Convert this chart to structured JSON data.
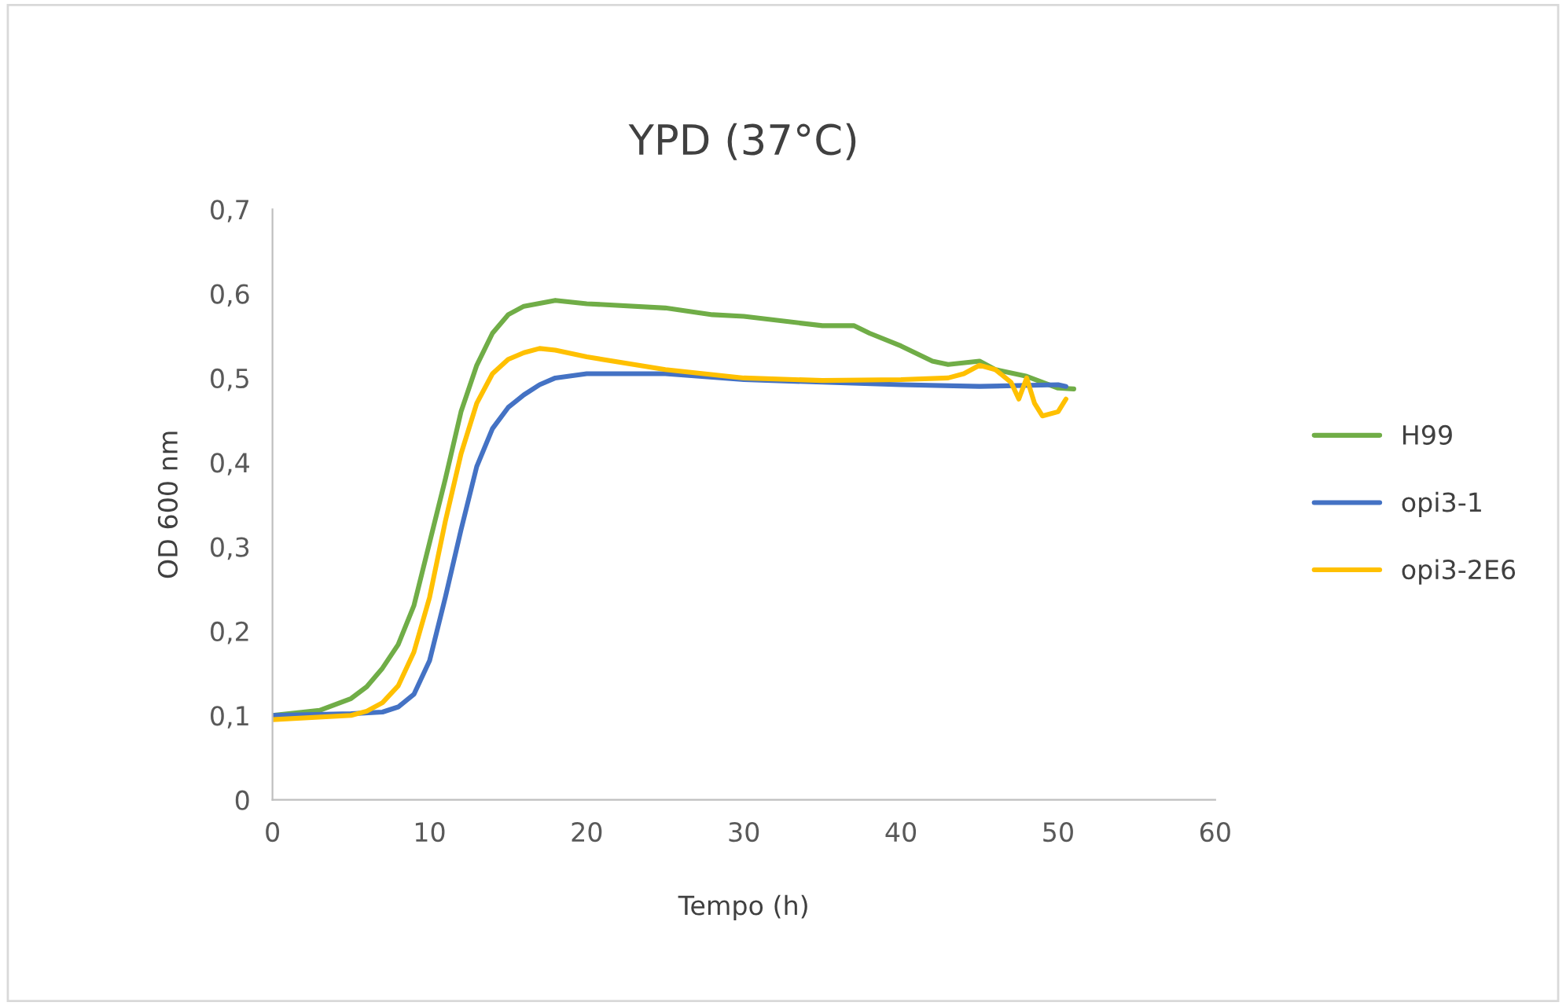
{
  "chart_data": {
    "type": "line",
    "title": "YPD (37°C)",
    "xlabel": "Tempo (h)",
    "ylabel": "OD 600 nm",
    "xlim": [
      0,
      60
    ],
    "xticks": [
      0,
      10,
      20,
      30,
      40,
      50,
      60
    ],
    "ylim": [
      0,
      0.7
    ],
    "yticks": [
      0,
      {
        "value": 0.1,
        "label": "0,1"
      },
      {
        "value": 0.2,
        "label": "0,2"
      },
      {
        "value": 0.3,
        "label": "0,3"
      },
      {
        "value": 0.4,
        "label": "0,4"
      },
      {
        "value": 0.5,
        "label": "0,5"
      },
      {
        "value": 0.6,
        "label": "0,6"
      },
      {
        "value": 0.7,
        "label": "0,7"
      }
    ],
    "grid": false,
    "legend": "right",
    "marker": "none",
    "line_style": "solid",
    "series": [
      {
        "name": "H99",
        "color": "#70ad47",
        "x": [
          0,
          3,
          5,
          6,
          7,
          8,
          9,
          10,
          11,
          12,
          13,
          14,
          15,
          16,
          18,
          20,
          25,
          28,
          30,
          35,
          37,
          38,
          40,
          42,
          43,
          45,
          46,
          48,
          50,
          51
        ],
        "values": [
          0.1,
          0.106,
          0.12,
          0.134,
          0.156,
          0.184,
          0.23,
          0.305,
          0.38,
          0.46,
          0.515,
          0.553,
          0.575,
          0.585,
          0.592,
          0.588,
          0.583,
          0.575,
          0.573,
          0.562,
          0.562,
          0.553,
          0.538,
          0.52,
          0.516,
          0.52,
          0.51,
          0.502,
          0.488,
          0.487
        ]
      },
      {
        "name": "opi3-1",
        "color": "#4472c4",
        "x": [
          0,
          5,
          7,
          8,
          9,
          10,
          11,
          12,
          13,
          14,
          15,
          16,
          17,
          18,
          20,
          25,
          30,
          35,
          40,
          45,
          50,
          50.5
        ],
        "values": [
          0.1,
          0.102,
          0.104,
          0.11,
          0.125,
          0.165,
          0.24,
          0.32,
          0.395,
          0.44,
          0.465,
          0.48,
          0.492,
          0.5,
          0.505,
          0.505,
          0.498,
          0.495,
          0.492,
          0.49,
          0.492,
          0.49
        ]
      },
      {
        "name": "opi3-2E6",
        "color": "#ffc000",
        "x": [
          0,
          5,
          6,
          7,
          8,
          9,
          10,
          11,
          12,
          13,
          14,
          15,
          16,
          17,
          18,
          20,
          25,
          30,
          35,
          40,
          43,
          44,
          45,
          46,
          47,
          47.5,
          48,
          48.5,
          49,
          50,
          50.5
        ],
        "values": [
          0.095,
          0.1,
          0.105,
          0.115,
          0.135,
          0.175,
          0.24,
          0.33,
          0.41,
          0.47,
          0.505,
          0.522,
          0.53,
          0.535,
          0.533,
          0.525,
          0.51,
          0.5,
          0.497,
          0.498,
          0.5,
          0.505,
          0.515,
          0.51,
          0.495,
          0.475,
          0.5,
          0.47,
          0.455,
          0.46,
          0.475
        ]
      }
    ]
  }
}
